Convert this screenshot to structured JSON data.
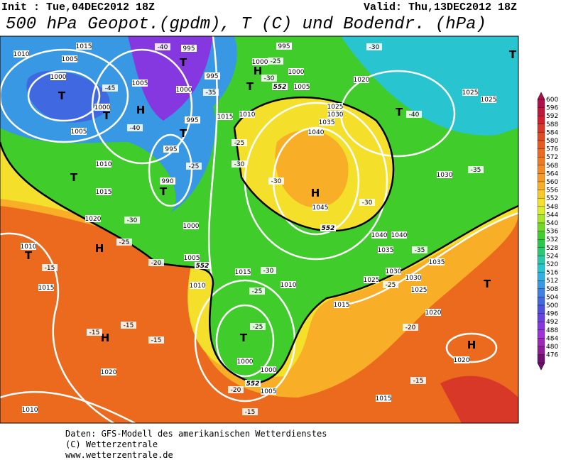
{
  "header": {
    "init": "Init : Tue,04DEC2012 18Z",
    "valid": "Valid: Thu,13DEC2012 18Z",
    "title": "500 hPa Geopot.(gpdm), T (C) und Bodendr. (hPa)"
  },
  "colorbar": {
    "levels": [
      600,
      596,
      592,
      588,
      584,
      580,
      576,
      572,
      568,
      564,
      560,
      556,
      552,
      548,
      544,
      540,
      536,
      532,
      528,
      524,
      520,
      516,
      512,
      508,
      504,
      500,
      496,
      492,
      488,
      484,
      480,
      476
    ],
    "colors": [
      "#b0104a",
      "#c0183a",
      "#d02030",
      "#d83828",
      "#e04a20",
      "#e65a1e",
      "#ec6a1e",
      "#f07a20",
      "#f48a22",
      "#f69c24",
      "#f8ae26",
      "#f6c828",
      "#f4e02a",
      "#d8ec2c",
      "#a8e42a",
      "#70d828",
      "#40cc2a",
      "#2ac84a",
      "#28c878",
      "#28c8a8",
      "#28c4d0",
      "#30b0e0",
      "#3898e4",
      "#3c80e4",
      "#4068e0",
      "#5050e0",
      "#6a40e0",
      "#8638e0",
      "#a030d8",
      "#a028b8",
      "#901c98",
      "#701070"
    ]
  },
  "map": {
    "centers": [
      "T",
      "T",
      "H",
      "T",
      "H",
      "T",
      "T",
      "T",
      "T",
      "H",
      "T",
      "H",
      "T",
      "H",
      "T",
      "T",
      "T",
      "H"
    ],
    "isobar_labels": [
      "1015",
      "1010",
      "1005",
      "1000",
      "1005",
      "1000",
      "995",
      "995",
      "1000",
      "1005",
      "995",
      "995",
      "990",
      "1010",
      "1015",
      "1020",
      "1000",
      "1005",
      "1010",
      "995",
      "1000",
      "1000",
      "1005",
      "1015",
      "1010",
      "1020",
      "1025",
      "1030",
      "1035",
      "1040",
      "1045",
      "1030",
      "1025",
      "1025",
      "1040",
      "1040",
      "1035",
      "1035",
      "1030",
      "1025",
      "1030",
      "1025",
      "1020",
      "1015",
      "1010",
      "1015",
      "1015",
      "1010",
      "1020",
      "1010",
      "1005",
      "1000",
      "1000",
      "1015",
      "1020"
    ],
    "temp_labels": [
      "-40",
      "-25",
      "-30",
      "-45",
      "-35",
      "-40",
      "-40",
      "-30",
      "-25",
      "-30",
      "-25",
      "-30",
      "-30",
      "-35",
      "-30",
      "-25",
      "-20",
      "-15",
      "-35",
      "-30",
      "-25",
      "-25",
      "-25",
      "-15",
      "-15",
      "-15",
      "-20",
      "-20",
      "-15",
      "-15"
    ],
    "height_labels": [
      "552",
      "552",
      "552",
      "552"
    ]
  },
  "footer": {
    "line1": "Daten: GFS-Modell des amerikanischen Wetterdienstes",
    "line2": "(C) Wetterzentrale",
    "line3": "www.wetterzentrale.de"
  }
}
